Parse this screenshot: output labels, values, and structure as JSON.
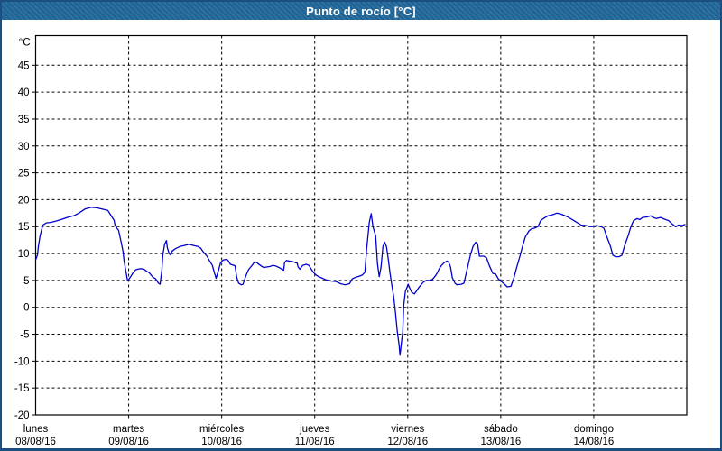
{
  "window": {
    "title": "Punto de rocío [°C]"
  },
  "colors": {
    "frame_border": "#1A4F80",
    "titlebar_bg": "#1F6699",
    "titlebar_text": "#FFFFFF",
    "plot_bg": "#FFFFFF",
    "grid": "#000000",
    "axis_text": "#000000",
    "series_line": "#0000CC"
  },
  "chart_data": {
    "type": "line",
    "title": "Punto de rocío [°C]",
    "ylabel": "°C",
    "ylim": [
      -20,
      50.5
    ],
    "yticks": [
      45,
      40,
      35,
      30,
      25,
      20,
      15,
      10,
      5,
      0,
      -5,
      -10,
      -15,
      -20
    ],
    "grid": "dashed",
    "legend": "none",
    "x_days": [
      {
        "name": "lunes",
        "date": "08/08/16"
      },
      {
        "name": "martes",
        "date": "09/08/16"
      },
      {
        "name": "miércoles",
        "date": "10/08/16"
      },
      {
        "name": "jueves",
        "date": "11/08/16"
      },
      {
        "name": "viernes",
        "date": "12/08/16"
      },
      {
        "name": "sábado",
        "date": "13/08/16"
      },
      {
        "name": "domingo",
        "date": "14/08/16"
      }
    ],
    "series": [
      {
        "name": "Punto de rocío",
        "unit": "°C",
        "x_unit": "days_from_monday_00h",
        "points": [
          [
            0.0,
            8.8
          ],
          [
            0.019,
            9.7
          ],
          [
            0.029,
            11.3
          ],
          [
            0.048,
            13.3
          ],
          [
            0.068,
            14.7
          ],
          [
            0.078,
            15.3
          ],
          [
            0.116,
            15.7
          ],
          [
            0.165,
            15.8
          ],
          [
            0.213,
            16.0
          ],
          [
            0.272,
            16.3
          ],
          [
            0.339,
            16.7
          ],
          [
            0.407,
            17.0
          ],
          [
            0.465,
            17.5
          ],
          [
            0.533,
            18.3
          ],
          [
            0.601,
            18.6
          ],
          [
            0.659,
            18.5
          ],
          [
            0.708,
            18.3
          ],
          [
            0.776,
            18.0
          ],
          [
            0.805,
            17.2
          ],
          [
            0.824,
            16.7
          ],
          [
            0.843,
            16.2
          ],
          [
            0.853,
            15.3
          ],
          [
            0.873,
            14.7
          ],
          [
            0.892,
            14.3
          ],
          [
            0.921,
            12.0
          ],
          [
            0.94,
            10.3
          ],
          [
            0.95,
            8.7
          ],
          [
            0.97,
            6.7
          ],
          [
            0.989,
            4.9
          ],
          [
            1.018,
            5.6
          ],
          [
            1.047,
            6.4
          ],
          [
            1.076,
            7.0
          ],
          [
            1.125,
            7.2
          ],
          [
            1.163,
            7.1
          ],
          [
            1.193,
            6.7
          ],
          [
            1.222,
            6.4
          ],
          [
            1.26,
            5.6
          ],
          [
            1.29,
            5.3
          ],
          [
            1.319,
            4.5
          ],
          [
            1.338,
            4.3
          ],
          [
            1.357,
            7.0
          ],
          [
            1.367,
            9.7
          ],
          [
            1.386,
            11.7
          ],
          [
            1.406,
            12.4
          ],
          [
            1.416,
            11.1
          ],
          [
            1.435,
            10.0
          ],
          [
            1.454,
            9.7
          ],
          [
            1.464,
            10.4
          ],
          [
            1.503,
            10.9
          ],
          [
            1.551,
            11.3
          ],
          [
            1.6,
            11.5
          ],
          [
            1.648,
            11.7
          ],
          [
            1.697,
            11.5
          ],
          [
            1.745,
            11.3
          ],
          [
            1.774,
            11.0
          ],
          [
            1.803,
            10.3
          ],
          [
            1.842,
            9.5
          ],
          [
            1.871,
            8.6
          ],
          [
            1.9,
            7.8
          ],
          [
            1.92,
            6.5
          ],
          [
            1.939,
            5.4
          ],
          [
            1.968,
            7.0
          ],
          [
            1.988,
            8.3
          ],
          [
            2.017,
            8.8
          ],
          [
            2.046,
            8.9
          ],
          [
            2.065,
            8.8
          ],
          [
            2.094,
            8.0
          ],
          [
            2.133,
            7.8
          ],
          [
            2.143,
            7.7
          ],
          [
            2.162,
            5.6
          ],
          [
            2.182,
            4.5
          ],
          [
            2.211,
            4.2
          ],
          [
            2.23,
            4.3
          ],
          [
            2.259,
            5.8
          ],
          [
            2.288,
            7.0
          ],
          [
            2.327,
            7.8
          ],
          [
            2.356,
            8.5
          ],
          [
            2.385,
            8.2
          ],
          [
            2.424,
            7.7
          ],
          [
            2.453,
            7.4
          ],
          [
            2.482,
            7.5
          ],
          [
            2.521,
            7.6
          ],
          [
            2.55,
            7.8
          ],
          [
            2.579,
            7.7
          ],
          [
            2.618,
            7.4
          ],
          [
            2.647,
            7.1
          ],
          [
            2.666,
            6.9
          ],
          [
            2.676,
            8.3
          ],
          [
            2.695,
            8.7
          ],
          [
            2.724,
            8.6
          ],
          [
            2.763,
            8.5
          ],
          [
            2.792,
            8.3
          ],
          [
            2.812,
            8.2
          ],
          [
            2.821,
            7.5
          ],
          [
            2.841,
            7.1
          ],
          [
            2.87,
            7.8
          ],
          [
            2.909,
            8.0
          ],
          [
            2.938,
            7.8
          ],
          [
            2.967,
            7.0
          ],
          [
            2.986,
            6.5
          ],
          [
            3.015,
            6.0
          ],
          [
            3.044,
            5.7
          ],
          [
            3.083,
            5.4
          ],
          [
            3.122,
            5.1
          ],
          [
            3.17,
            4.9
          ],
          [
            3.229,
            4.8
          ],
          [
            3.277,
            4.4
          ],
          [
            3.326,
            4.2
          ],
          [
            3.374,
            4.4
          ],
          [
            3.403,
            5.3
          ],
          [
            3.442,
            5.6
          ],
          [
            3.481,
            5.8
          ],
          [
            3.51,
            6.0
          ],
          [
            3.539,
            6.5
          ],
          [
            3.558,
            10.8
          ],
          [
            3.587,
            15.8
          ],
          [
            3.607,
            17.4
          ],
          [
            3.626,
            15.0
          ],
          [
            3.655,
            13.3
          ],
          [
            3.675,
            8.0
          ],
          [
            3.694,
            5.7
          ],
          [
            3.713,
            7.5
          ],
          [
            3.733,
            11.3
          ],
          [
            3.752,
            12.1
          ],
          [
            3.771,
            11.3
          ],
          [
            3.791,
            9.0
          ],
          [
            3.81,
            6.3
          ],
          [
            3.83,
            4.0
          ],
          [
            3.849,
            2.0
          ],
          [
            3.868,
            -1.0
          ],
          [
            3.888,
            -4.5
          ],
          [
            3.907,
            -7.0
          ],
          [
            3.917,
            -8.9
          ],
          [
            3.936,
            -6.0
          ],
          [
            3.946,
            -4.7
          ],
          [
            3.956,
            0.3
          ],
          [
            3.975,
            3.0
          ],
          [
            3.994,
            3.8
          ],
          [
            4.004,
            4.3
          ],
          [
            4.023,
            3.5
          ],
          [
            4.043,
            2.8
          ],
          [
            4.072,
            2.5
          ],
          [
            4.101,
            3.2
          ],
          [
            4.12,
            3.7
          ],
          [
            4.149,
            4.3
          ],
          [
            4.169,
            4.7
          ],
          [
            4.198,
            5.0
          ],
          [
            4.237,
            5.0
          ],
          [
            4.266,
            5.2
          ],
          [
            4.295,
            5.8
          ],
          [
            4.314,
            6.3
          ],
          [
            4.343,
            7.3
          ],
          [
            4.363,
            7.8
          ],
          [
            4.392,
            8.3
          ],
          [
            4.421,
            8.6
          ],
          [
            4.44,
            8.4
          ],
          [
            4.46,
            7.5
          ],
          [
            4.479,
            5.5
          ],
          [
            4.508,
            4.5
          ],
          [
            4.528,
            4.2
          ],
          [
            4.576,
            4.3
          ],
          [
            4.605,
            4.5
          ],
          [
            4.634,
            6.7
          ],
          [
            4.673,
            9.7
          ],
          [
            4.702,
            11.3
          ],
          [
            4.731,
            12.1
          ],
          [
            4.751,
            11.8
          ],
          [
            4.77,
            9.5
          ],
          [
            4.818,
            9.5
          ],
          [
            4.847,
            9.2
          ],
          [
            4.876,
            7.8
          ],
          [
            4.915,
            6.3
          ],
          [
            4.944,
            6.2
          ],
          [
            4.973,
            5.3
          ],
          [
            4.993,
            5.0
          ],
          [
            5.041,
            4.3
          ],
          [
            5.07,
            3.8
          ],
          [
            5.109,
            3.9
          ],
          [
            5.138,
            5.3
          ],
          [
            5.167,
            7.2
          ],
          [
            5.206,
            9.5
          ],
          [
            5.235,
            11.4
          ],
          [
            5.264,
            13.1
          ],
          [
            5.303,
            14.2
          ],
          [
            5.332,
            14.6
          ],
          [
            5.361,
            14.7
          ],
          [
            5.4,
            15.0
          ],
          [
            5.429,
            16.1
          ],
          [
            5.458,
            16.5
          ],
          [
            5.507,
            17.0
          ],
          [
            5.555,
            17.2
          ],
          [
            5.604,
            17.5
          ],
          [
            5.652,
            17.3
          ],
          [
            5.72,
            16.8
          ],
          [
            5.798,
            16.0
          ],
          [
            5.865,
            15.3
          ],
          [
            5.914,
            15.2
          ],
          [
            5.962,
            15.0
          ],
          [
            5.982,
            15.0
          ],
          [
            6.03,
            15.2
          ],
          [
            6.079,
            15.0
          ],
          [
            6.108,
            14.7
          ],
          [
            6.137,
            13.3
          ],
          [
            6.176,
            11.5
          ],
          [
            6.205,
            9.7
          ],
          [
            6.234,
            9.4
          ],
          [
            6.273,
            9.4
          ],
          [
            6.302,
            9.7
          ],
          [
            6.331,
            11.4
          ],
          [
            6.369,
            13.3
          ],
          [
            6.399,
            15.0
          ],
          [
            6.428,
            16.1
          ],
          [
            6.466,
            16.5
          ],
          [
            6.495,
            16.3
          ],
          [
            6.525,
            16.7
          ],
          [
            6.573,
            16.8
          ],
          [
            6.612,
            17.0
          ],
          [
            6.641,
            16.7
          ],
          [
            6.67,
            16.5
          ],
          [
            6.718,
            16.7
          ],
          [
            6.757,
            16.4
          ],
          [
            6.806,
            16.1
          ],
          [
            6.835,
            15.6
          ],
          [
            6.864,
            15.2
          ],
          [
            6.883,
            15.0
          ],
          [
            6.912,
            15.3
          ],
          [
            6.951,
            15.2
          ],
          [
            6.98,
            15.4
          ]
        ]
      }
    ]
  }
}
